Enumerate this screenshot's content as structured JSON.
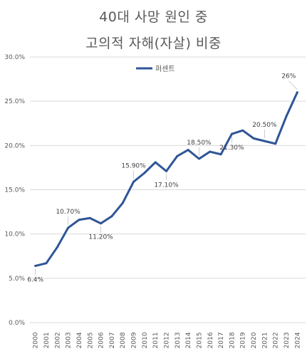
{
  "title_line1": "40대 사망 원인 중",
  "title_line2": "고의적 자해(자살) 비중",
  "chart_data": {
    "type": "line",
    "title": "40대 사망 원인 중 고의적 자해(자살) 비중",
    "x": [
      "2000",
      "2001",
      "2002",
      "2003",
      "2004",
      "2005",
      "2006",
      "2007",
      "2008",
      "2009",
      "2010",
      "2011",
      "2012",
      "2013",
      "2014",
      "2015",
      "2016",
      "2017",
      "2018",
      "2019",
      "2020",
      "2021",
      "2022",
      "2023",
      "2024"
    ],
    "series": [
      {
        "name": "퍼센트",
        "color": "#2F5597",
        "values": [
          6.4,
          6.7,
          8.5,
          10.7,
          11.6,
          11.8,
          11.2,
          12.0,
          13.5,
          15.9,
          16.9,
          18.1,
          17.1,
          18.8,
          19.5,
          18.5,
          19.3,
          19.0,
          21.3,
          21.7,
          20.8,
          20.5,
          20.2,
          23.3,
          26.0
        ]
      }
    ],
    "ylim": [
      0,
      30
    ],
    "yticks": [
      "0.0%",
      "5.0%",
      "10.0%",
      "15.0%",
      "20.0%",
      "25.0%",
      "30.0%"
    ],
    "grid": true,
    "legend": "top-center",
    "data_labels": [
      {
        "index": 0,
        "text": "6.4%",
        "pos": "below"
      },
      {
        "index": 3,
        "text": "10.70%",
        "pos": "above"
      },
      {
        "index": 6,
        "text": "11.20%",
        "pos": "below"
      },
      {
        "index": 9,
        "text": "15.90%",
        "pos": "above"
      },
      {
        "index": 12,
        "text": "17.10%",
        "pos": "below"
      },
      {
        "index": 15,
        "text": "18.50%",
        "pos": "above"
      },
      {
        "index": 18,
        "text": "21.30%",
        "pos": "below"
      },
      {
        "index": 21,
        "text": "20.50%",
        "pos": "above"
      },
      {
        "index": 24,
        "text": "26%",
        "pos": "above"
      }
    ]
  }
}
